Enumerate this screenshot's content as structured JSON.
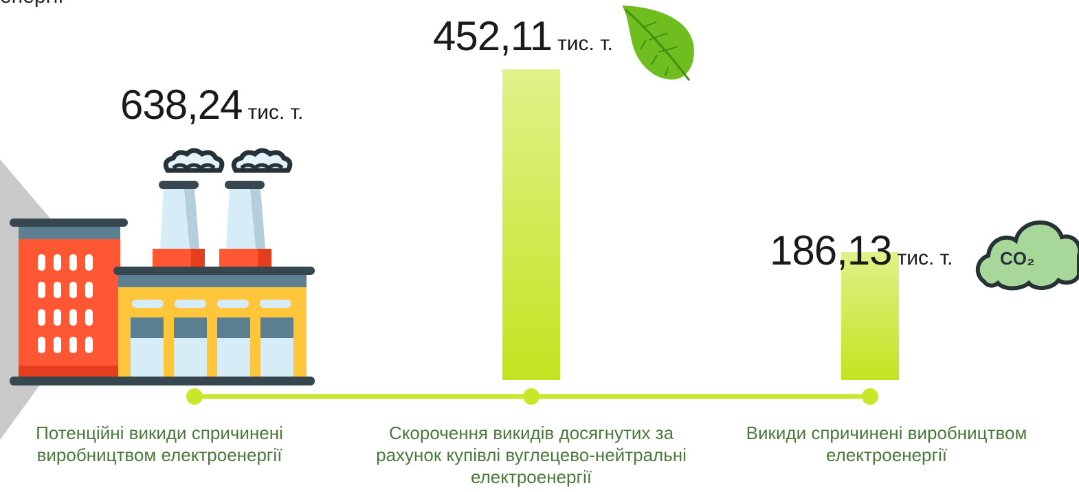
{
  "header_fragment": "енергії",
  "unit": "тис. т.",
  "colors": {
    "bar_top": "#dff28a",
    "bar_bottom": "#c2e41f",
    "timeline": "#c7e82a",
    "category_text": "#4a7a3a",
    "value_text": "#1a1a1a"
  },
  "icons": [
    "factory-icon",
    "leaf-icon",
    "co2-cloud-icon"
  ],
  "chart_data": {
    "type": "bar",
    "title": "",
    "xlabel": "",
    "ylabel": "",
    "categories": [
      "Потенційні викиди спричинені виробництвом електроенергії",
      "Скорочення викидів досягнутих за рахунок купівлі вуглецево-нейтральні електроенергії",
      "Викиди спричинені виробництвом електроенергії"
    ],
    "value_labels": [
      "638,24",
      "452,11",
      "186,13"
    ],
    "values": [
      638.24,
      452.11,
      186.13
    ],
    "units": "тис. т.",
    "ylim": [
      0,
      500
    ],
    "grid": false,
    "first_category_drawn_as_icon": true
  }
}
